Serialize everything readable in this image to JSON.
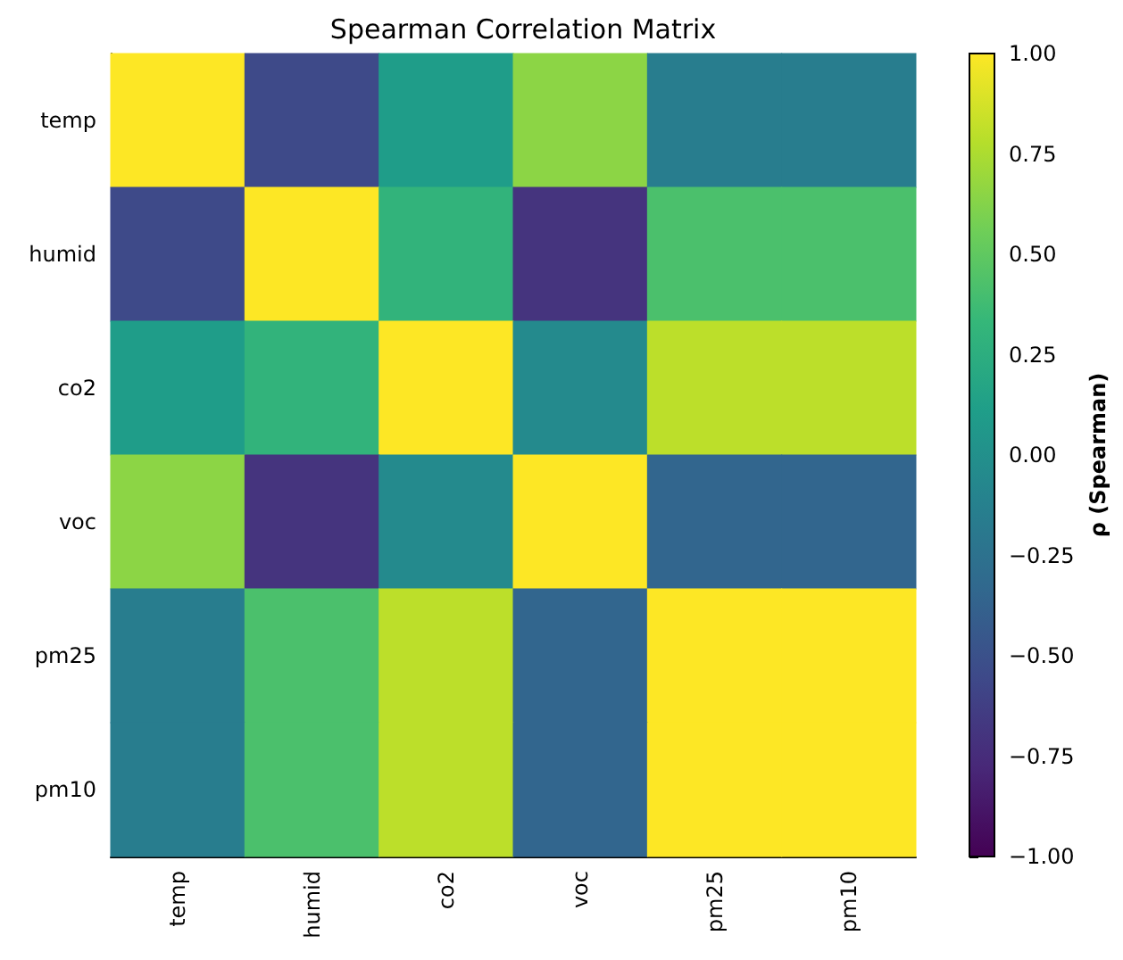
{
  "chart_data": {
    "type": "heatmap",
    "title": "Spearman Correlation Matrix",
    "clabel": "ρ (Spearman)",
    "categories": [
      "temp",
      "humid",
      "co2",
      "voc",
      "pm25",
      "pm10"
    ],
    "y_categories": [
      "temp",
      "humid",
      "co2",
      "voc",
      "pm25",
      "pm10"
    ],
    "cells": [
      [
        1,
        -0.55,
        0.1,
        0.65,
        -0.15,
        -0.15
      ],
      [
        -0.55,
        1,
        0.3,
        -0.7,
        0.42,
        0.42
      ],
      [
        0.1,
        0.3,
        1,
        -0.05,
        0.8,
        0.8
      ],
      [
        0.65,
        -0.7,
        -0.05,
        1,
        -0.35,
        -0.35
      ],
      [
        -0.15,
        0.42,
        0.8,
        -0.35,
        1,
        1
      ],
      [
        -0.15,
        0.42,
        0.8,
        -0.35,
        1,
        1
      ]
    ],
    "clim": [
      -1,
      1
    ],
    "cticks": [
      {
        "value": -1,
        "label": "−1.00"
      },
      {
        "value": -0.75,
        "label": "−0.75"
      },
      {
        "value": -0.5,
        "label": "−0.50"
      },
      {
        "value": -0.25,
        "label": "−0.25"
      },
      {
        "value": 0,
        "label": "0.00"
      },
      {
        "value": 0.25,
        "label": "0.25"
      },
      {
        "value": 0.5,
        "label": "0.50"
      },
      {
        "value": 0.75,
        "label": "0.75"
      },
      {
        "value": 1,
        "label": "1.00"
      }
    ]
  }
}
